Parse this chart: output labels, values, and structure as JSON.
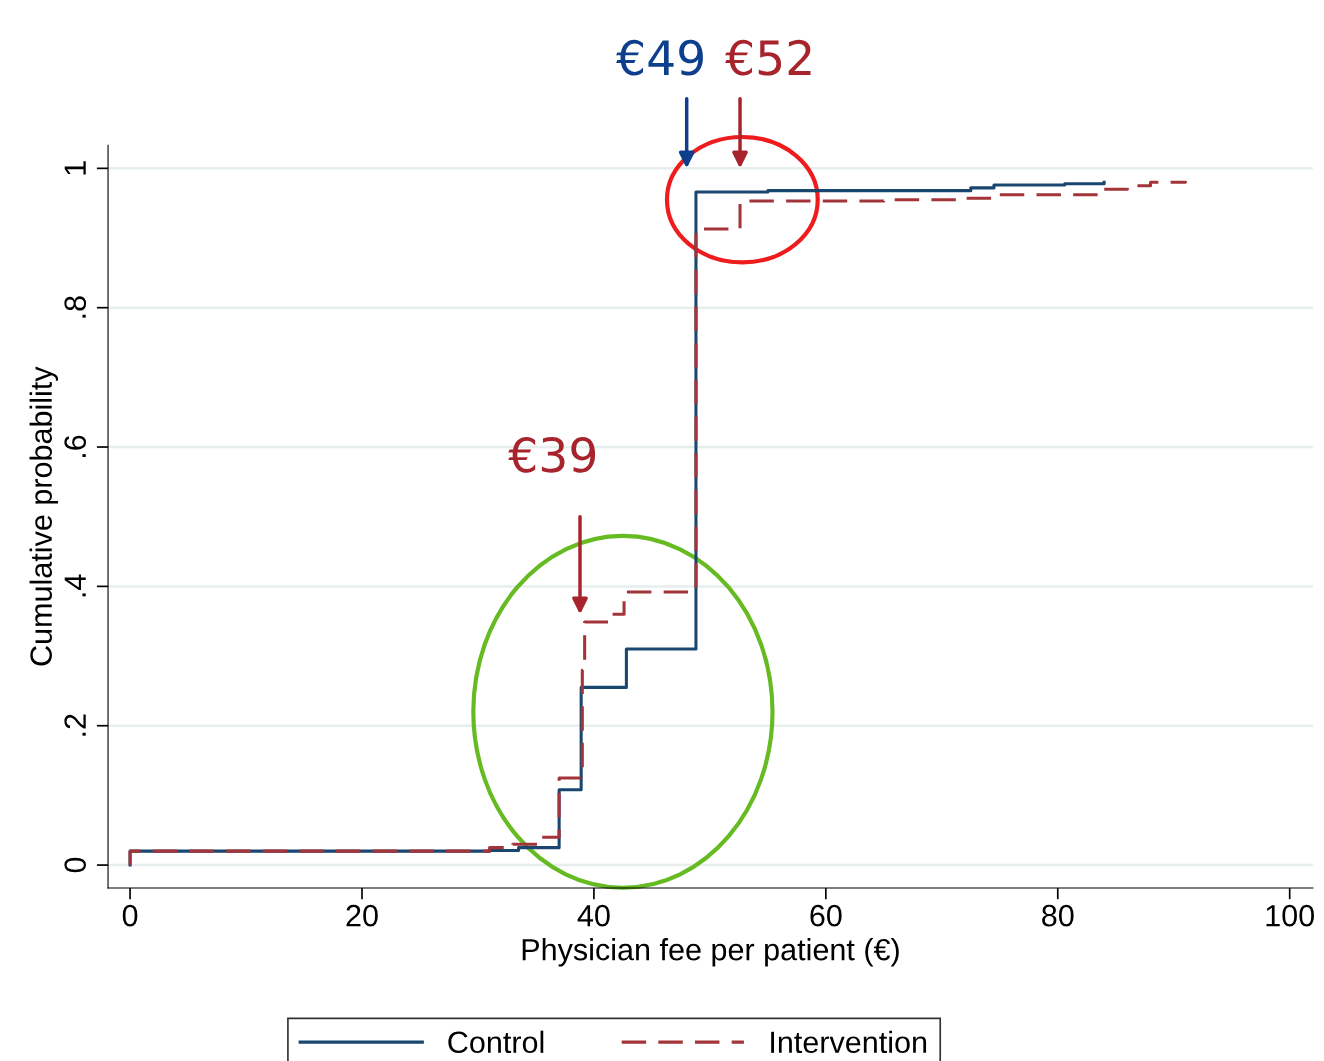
{
  "chart_data": {
    "type": "step",
    "xlabel": "Physician fee per patient (€)",
    "ylabel": "Cumulative probability",
    "xlim": [
      -1.9,
      102
    ],
    "ylim": [
      -0.033,
      1.033
    ],
    "xticks": [
      0,
      20,
      40,
      60,
      80,
      100
    ],
    "yticks": [
      0,
      {
        "value": 0.2,
        "label": ".2"
      },
      {
        "value": 0.4,
        "label": ".4"
      },
      {
        "value": 0.6,
        "label": ".6"
      },
      {
        "value": 0.8,
        "label": ".8"
      },
      {
        "value": 1,
        "label": "1"
      }
    ],
    "grid": "y",
    "legend": "bottom",
    "series": [
      {
        "name": "Control",
        "color": "#1a476f",
        "line_style": "solid",
        "x": [
          0,
          0,
          31,
          33.5,
          37,
          38.9,
          42.8,
          48.8,
          55,
          72.5,
          74.5,
          80.6,
          84
        ],
        "values": [
          0,
          0.02,
          0.021,
          0.025,
          0.108,
          0.255,
          0.31,
          0.966,
          0.968,
          0.972,
          0.976,
          0.978,
          0.98
        ]
      },
      {
        "name": "Intervention",
        "color": "#a2343a",
        "line_style": "dashed",
        "x": [
          0,
          0,
          31,
          33,
          35.5,
          37,
          39,
          39.2,
          41.6,
          42.6,
          48.8,
          52.6,
          65,
          72,
          74.5,
          83.9,
          86,
          88,
          91
        ],
        "values": [
          0,
          0.02,
          0.025,
          0.03,
          0.04,
          0.125,
          0.28,
          0.349,
          0.36,
          0.392,
          0.913,
          0.953,
          0.955,
          0.957,
          0.962,
          0.97,
          0.975,
          0.98,
          0.982
        ]
      }
    ],
    "annotations": [
      "€49",
      "€52",
      "€39"
    ]
  }
}
